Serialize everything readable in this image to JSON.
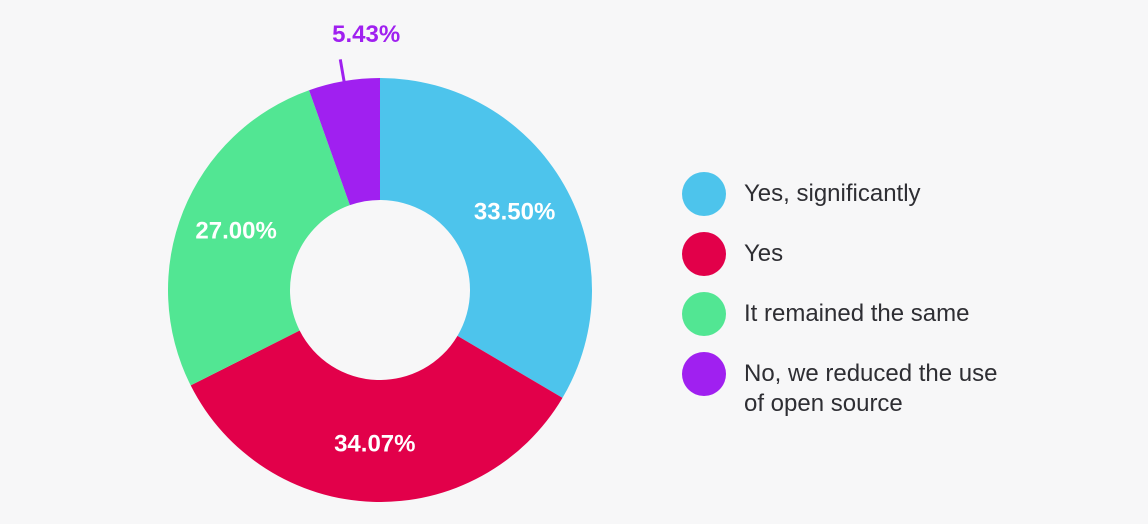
{
  "chart_data": {
    "type": "pie",
    "donut": true,
    "categories": [
      "Yes, significantly",
      "Yes",
      "It remained the same",
      "No, we reduced the use of open source"
    ],
    "values": [
      33.5,
      34.07,
      27.0,
      5.43
    ],
    "value_labels": [
      "33.50%",
      "34.07%",
      "27.00%",
      "5.43%"
    ],
    "colors": [
      "#4dc4ec",
      "#e2004a",
      "#52e693",
      "#a020f0"
    ],
    "legend_position": "right",
    "start_angle_deg": 0,
    "direction": "clockwise"
  },
  "legend": {
    "items": [
      {
        "label": "Yes, significantly",
        "color": "#4dc4ec"
      },
      {
        "label": "Yes",
        "color": "#e2004a"
      },
      {
        "label": "It remained the same",
        "color": "#52e693"
      },
      {
        "label": "No, we reduced the use of open source",
        "color": "#a020f0"
      }
    ]
  }
}
